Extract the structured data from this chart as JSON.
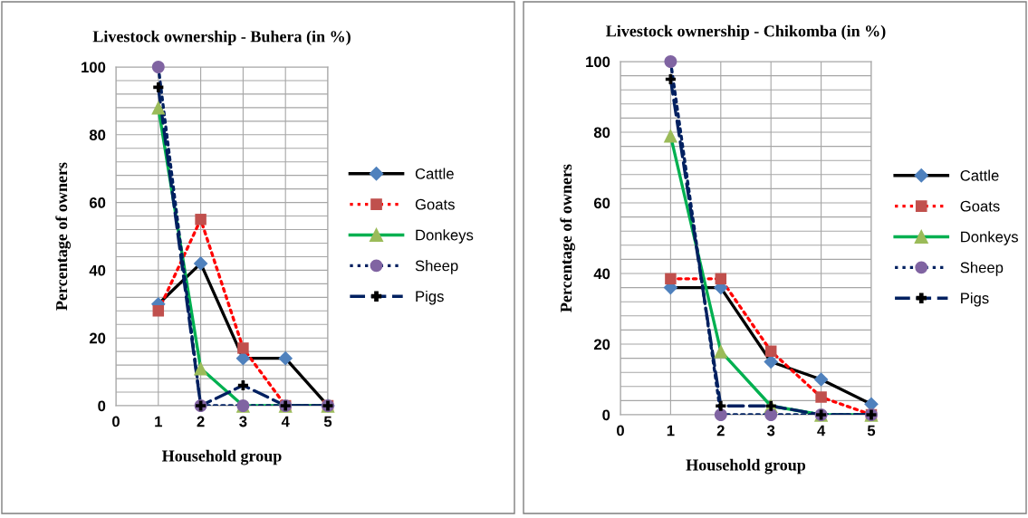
{
  "chart_data": [
    {
      "type": "line",
      "title": "Livestock ownership - Buhera (in %)",
      "xlabel": "Household group",
      "ylabel": "Percentage of owners",
      "x": [
        1,
        2,
        3,
        4,
        5
      ],
      "xlim": [
        0,
        5
      ],
      "xticks": [
        0,
        1,
        2,
        3,
        4,
        5
      ],
      "ylim": [
        0,
        100
      ],
      "yticks": [
        0,
        {
          "value": 4,
          "label": null
        },
        {
          "value": 8,
          "label": null
        },
        {
          "value": 12,
          "label": null
        },
        {
          "value": 16,
          "label": null
        },
        20,
        {
          "value": 24,
          "label": null
        },
        {
          "value": 28,
          "label": null
        },
        {
          "value": 32,
          "label": null
        },
        {
          "value": 36,
          "label": null
        },
        40,
        {
          "value": 44,
          "label": null
        },
        {
          "value": 48,
          "label": null
        },
        {
          "value": 52,
          "label": null
        },
        {
          "value": 56,
          "label": null
        },
        60,
        {
          "value": 64,
          "label": null
        },
        {
          "value": 68,
          "label": null
        },
        {
          "value": 72,
          "label": null
        },
        {
          "value": 76,
          "label": null
        },
        80,
        {
          "value": 84,
          "label": null
        },
        {
          "value": 88,
          "label": null
        },
        {
          "value": 92,
          "label": null
        },
        {
          "value": 96,
          "label": null
        },
        100
      ],
      "grid": true,
      "legend": "right",
      "series": [
        {
          "name": "Cattle",
          "color": "#000000",
          "marker": "diamond",
          "line_style": "solid",
          "values": [
            30,
            42,
            14,
            14,
            0
          ]
        },
        {
          "name": "Goats",
          "color": "#ff0000",
          "marker": "square",
          "line_style": "dotted",
          "values": [
            28,
            55,
            17,
            0,
            0
          ]
        },
        {
          "name": "Donkeys",
          "color": "#00b050",
          "marker": "triangle",
          "line_style": "solid",
          "values": [
            88,
            11,
            0,
            0,
            0
          ]
        },
        {
          "name": "Sheep",
          "color": "#002060",
          "marker": "circle",
          "line_style": "dotted",
          "values": [
            100,
            0,
            0,
            0,
            0
          ]
        },
        {
          "name": "Pigs",
          "color": "#002060",
          "marker": "cross",
          "line_style": "dashed",
          "values": [
            94,
            0,
            6,
            0,
            0
          ]
        }
      ]
    },
    {
      "type": "line",
      "title": "Livestock ownership - Chikomba (in %)",
      "xlabel": "Household group",
      "ylabel": "Percentage of owners",
      "x": [
        1,
        2,
        3,
        4,
        5
      ],
      "xlim": [
        0,
        5
      ],
      "xticks": [
        0,
        1,
        2,
        3,
        4,
        5
      ],
      "ylim": [
        0,
        100
      ],
      "yticks": [
        0,
        {
          "value": 4,
          "label": null
        },
        {
          "value": 8,
          "label": null
        },
        {
          "value": 12,
          "label": null
        },
        {
          "value": 16,
          "label": null
        },
        20,
        {
          "value": 24,
          "label": null
        },
        {
          "value": 28,
          "label": null
        },
        {
          "value": 32,
          "label": null
        },
        {
          "value": 36,
          "label": null
        },
        40,
        {
          "value": 44,
          "label": null
        },
        {
          "value": 48,
          "label": null
        },
        {
          "value": 52,
          "label": null
        },
        {
          "value": 56,
          "label": null
        },
        60,
        {
          "value": 64,
          "label": null
        },
        {
          "value": 68,
          "label": null
        },
        {
          "value": 72,
          "label": null
        },
        {
          "value": 76,
          "label": null
        },
        80,
        {
          "value": 84,
          "label": null
        },
        {
          "value": 88,
          "label": null
        },
        {
          "value": 92,
          "label": null
        },
        {
          "value": 96,
          "label": null
        },
        100
      ],
      "grid": true,
      "legend": "right",
      "series": [
        {
          "name": "Cattle",
          "color": "#000000",
          "marker": "diamond",
          "line_style": "solid",
          "values": [
            36,
            36,
            15,
            10,
            3
          ]
        },
        {
          "name": "Goats",
          "color": "#ff0000",
          "marker": "square",
          "line_style": "dotted",
          "values": [
            38.5,
            38.5,
            18,
            5,
            0
          ]
        },
        {
          "name": "Donkeys",
          "color": "#00b050",
          "marker": "triangle",
          "line_style": "solid",
          "values": [
            79,
            18,
            2.5,
            0,
            0
          ]
        },
        {
          "name": "Sheep",
          "color": "#002060",
          "marker": "circle",
          "line_style": "dotted",
          "values": [
            100,
            0,
            0,
            0,
            0
          ]
        },
        {
          "name": "Pigs",
          "color": "#002060",
          "marker": "cross",
          "line_style": "dashed",
          "values": [
            95,
            2.5,
            2.5,
            0,
            0
          ]
        }
      ]
    }
  ]
}
